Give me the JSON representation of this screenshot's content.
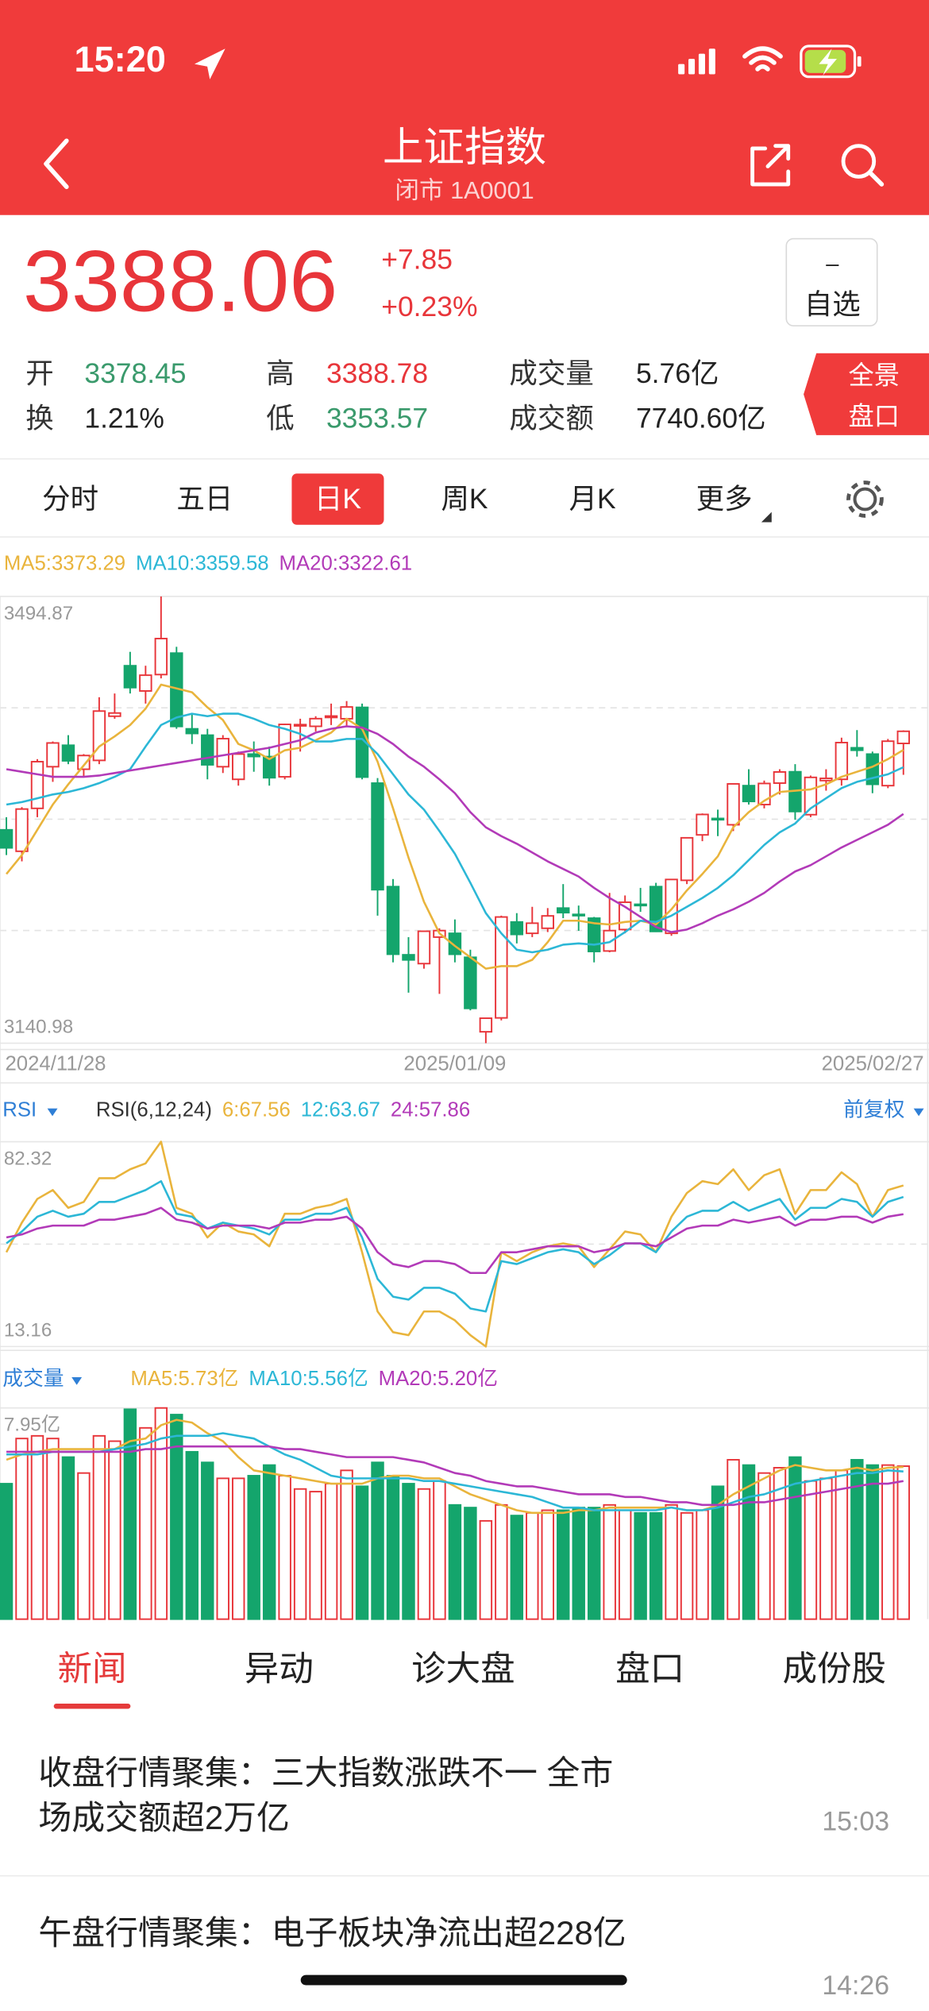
{
  "status_bar": {
    "time": "15:20"
  },
  "header": {
    "title": "上证指数",
    "subtitle": "闭市 1A0001"
  },
  "quote": {
    "price": "3388.06",
    "change": "+7.85",
    "change_pct": "+0.23%"
  },
  "watchlist_button": {
    "icon": "–",
    "label": "自选"
  },
  "stats": [
    {
      "label": "开",
      "value": "3378.45",
      "color": "#3a9a6c"
    },
    {
      "label": "高",
      "value": "3388.78",
      "color": "#e8353a"
    },
    {
      "label": "成交量",
      "value": "5.76亿",
      "color": "#222222"
    },
    {
      "label": "换",
      "value": "1.21%",
      "color": "#222222"
    },
    {
      "label": "低",
      "value": "3353.57",
      "color": "#3a9a6c"
    },
    {
      "label": "成交额",
      "value": "7740.60亿",
      "color": "#222222"
    }
  ],
  "panorama_button": [
    "全景",
    "盘口"
  ],
  "period_tabs": [
    "分时",
    "五日",
    "日K",
    "周K",
    "月K",
    "更多"
  ],
  "selected_period": "日K",
  "chart_data": [
    {
      "type": "candlestick",
      "categories": [
        "2024/11/28",
        null,
        null,
        null,
        null,
        null,
        null,
        null,
        null,
        null,
        null,
        null,
        null,
        null,
        null,
        null,
        null,
        null,
        null,
        null,
        null,
        null,
        null,
        null,
        null,
        null,
        null,
        null,
        null,
        "2025/01/09",
        null,
        null,
        null,
        null,
        null,
        null,
        null,
        null,
        null,
        null,
        null,
        null,
        null,
        null,
        null,
        null,
        null,
        null,
        null,
        null,
        null,
        null,
        null,
        null,
        null,
        null,
        null,
        null,
        "2025/02/27"
      ],
      "open": [
        3310,
        3293,
        3327,
        3360,
        3377,
        3358,
        3365,
        3400,
        3440,
        3420,
        3433,
        3450,
        3390,
        3385,
        3360,
        3350,
        3370,
        3368,
        3352,
        3393,
        3392,
        3399,
        3398,
        3407,
        3347,
        3265,
        3211,
        3204,
        3225,
        3228,
        3209,
        3150,
        3161,
        3237,
        3228,
        3232,
        3248,
        3243,
        3240,
        3214,
        3231,
        3251,
        3265,
        3228,
        3270,
        3306,
        3319,
        3314,
        3345,
        3330,
        3347,
        3356,
        3322,
        3349,
        3350,
        3375,
        3370,
        3345,
        3378.45
      ],
      "high": [
        3320,
        3328,
        3366,
        3380,
        3385,
        3370,
        3415,
        3418,
        3451,
        3440,
        3494.87,
        3455,
        3402,
        3390,
        3385,
        3372,
        3380,
        3376,
        3394,
        3398,
        3400,
        3410,
        3412,
        3410,
        3351,
        3271,
        3225,
        3230,
        3232,
        3239,
        3215,
        3161,
        3242,
        3244,
        3249,
        3248,
        3267,
        3250,
        3241,
        3260,
        3258,
        3264,
        3268,
        3271,
        3304,
        3323,
        3326,
        3347,
        3358,
        3349,
        3358,
        3362,
        3353,
        3358,
        3383,
        3389,
        3372,
        3382,
        3388.78
      ],
      "low": [
        3290,
        3285,
        3320,
        3348,
        3362,
        3352,
        3362,
        3398,
        3418,
        3410,
        3430,
        3390,
        3378,
        3350,
        3355,
        3345,
        3356,
        3345,
        3350,
        3372,
        3388,
        3393,
        3392,
        3350,
        3242,
        3205,
        3181,
        3200,
        3180,
        3205,
        3167,
        3140.98,
        3159,
        3220,
        3225,
        3229,
        3240,
        3230,
        3205,
        3213,
        3228,
        3245,
        3229,
        3226,
        3267,
        3301,
        3305,
        3309,
        3330,
        3327,
        3338,
        3318,
        3320,
        3341,
        3345,
        3368,
        3339,
        3343,
        3353.57
      ],
      "close": [
        3295.7,
        3326.46,
        3363.98,
        3378.81,
        3364.65,
        3368.86,
        3404.08,
        3402.53,
        3422.66,
        3432.49,
        3461.5,
        3391.88,
        3386.33,
        3361.49,
        3382.21,
        3370.03,
        3368.07,
        3351.26,
        3393.53,
        3393.35,
        3398.08,
        3400.14,
        3407.33,
        3351.76,
        3262.56,
        3211.43,
        3206.92,
        3229.64,
        3230.17,
        3211.39,
        3168.52,
        3160.76,
        3240.94,
        3227.12,
        3236.03,
        3241.82,
        3244.38,
        3242.62,
        3213.62,
        3230.16,
        3252.63,
        3250.6,
        3229.49,
        3270.66,
        3303.67,
        3322.17,
        3318.06,
        3346.39,
        3332.48,
        3346.72,
        3355.83,
        3324.49,
        3351.54,
        3350.78,
        3379.11,
        3373.03,
        3346.04,
        3380.21,
        3388.06
      ],
      "up_color": "#e8353a",
      "down_color": "#14a56c",
      "ylim": [
        3140.98,
        3494.87
      ],
      "yticks": [
        3140.98,
        3494.87
      ],
      "series": [
        {
          "name": "MA5:3373.29",
          "color": "#e9b43c",
          "values": [
            3275,
            3290,
            3310,
            3330,
            3346,
            3361,
            3376,
            3384,
            3393,
            3406,
            3425,
            3422,
            3419,
            3407,
            3397,
            3378,
            3373,
            3366,
            3373,
            3375,
            3381,
            3387,
            3398,
            3390,
            3364,
            3327,
            3288,
            3253,
            3228,
            3218,
            3209,
            3200,
            3202,
            3202,
            3207,
            3221,
            3238,
            3238,
            3236,
            3235,
            3237,
            3238,
            3235,
            3247,
            3262,
            3275,
            3289,
            3312,
            3324,
            3333,
            3340,
            3341,
            3342,
            3346,
            3352,
            3356,
            3360,
            3366,
            3373.29
          ]
        },
        {
          "name": "MA10:3359.58",
          "color": "#2cb7d6",
          "values": [
            3330,
            3332,
            3335,
            3338,
            3340,
            3343,
            3347,
            3352,
            3358,
            3376,
            3393,
            3399,
            3402,
            3400,
            3402,
            3402,
            3398,
            3393,
            3390,
            3386,
            3380,
            3380,
            3382,
            3382,
            3370,
            3354,
            3338,
            3326,
            3309,
            3291,
            3268,
            3244,
            3228,
            3215,
            3213,
            3215,
            3219,
            3220,
            3219,
            3221,
            3229,
            3238,
            3237,
            3242,
            3249,
            3256,
            3264,
            3274,
            3286,
            3298,
            3308,
            3315,
            3327,
            3335,
            3343,
            3348,
            3351,
            3354,
            3359.58
          ]
        },
        {
          "name": "MA20:3322.61",
          "color": "#b23ab8",
          "values": [
            3358,
            3356,
            3354,
            3352,
            3352,
            3352,
            3353,
            3355,
            3357,
            3359,
            3361,
            3363,
            3365,
            3367,
            3369,
            3371,
            3373,
            3375,
            3378,
            3381,
            3387,
            3390,
            3392,
            3391,
            3386,
            3378,
            3368,
            3360,
            3350,
            3339,
            3324,
            3312,
            3305,
            3299,
            3292,
            3285,
            3279,
            3273,
            3264,
            3256,
            3249,
            3241,
            3233,
            3229,
            3231,
            3236,
            3242,
            3247,
            3253,
            3260,
            3269,
            3277,
            3282,
            3289,
            3296,
            3302,
            3308,
            3314,
            3322.61
          ]
        }
      ]
    },
    {
      "type": "line",
      "title": "RSI",
      "params": "RSI(6,12,24)",
      "adjust_label": "前复权",
      "ylim": [
        13.16,
        82.32
      ],
      "yticks": [
        13.16,
        82.32
      ],
      "series": [
        {
          "name": "6:67.56",
          "color": "#e9b43c",
          "values": [
            45,
            55,
            63,
            66,
            60,
            62,
            70,
            70,
            73,
            75,
            82.32,
            60,
            58,
            50,
            55,
            52,
            51,
            47,
            58,
            58,
            60,
            61,
            63,
            45,
            25,
            18,
            17,
            25,
            25,
            22,
            17,
            13.16,
            45,
            42,
            45,
            47,
            48,
            47,
            40,
            46,
            52,
            51,
            45,
            57,
            65,
            69,
            68,
            73,
            66,
            71,
            73,
            58,
            66,
            66,
            72,
            68,
            57,
            66,
            67.56
          ]
        },
        {
          "name": "12:63.67",
          "color": "#2cb7d6",
          "values": [
            48,
            52,
            57,
            59,
            57,
            58,
            62,
            62,
            64,
            66,
            69,
            58,
            57,
            53,
            55,
            54,
            53,
            51,
            56,
            56,
            58,
            58,
            60,
            50,
            36,
            30,
            29,
            33,
            33,
            31,
            26,
            25,
            42,
            41,
            43,
            45,
            46,
            45,
            41,
            44,
            48,
            48,
            45,
            52,
            57,
            59,
            59,
            62,
            59,
            61,
            63,
            56,
            60,
            60,
            63,
            62,
            57,
            62,
            63.67
          ]
        },
        {
          "name": "24:57.86",
          "color": "#b23ab8",
          "values": [
            50,
            51,
            53,
            54,
            54,
            54,
            56,
            56,
            57,
            58,
            60,
            56,
            55,
            53,
            54,
            54,
            54,
            53,
            55,
            55,
            56,
            56,
            57,
            53,
            45,
            41,
            40,
            42,
            42,
            41,
            38,
            38,
            45,
            45,
            46,
            47,
            47,
            47,
            45,
            46,
            48,
            48,
            47,
            50,
            53,
            54,
            54,
            56,
            55,
            56,
            57,
            54,
            56,
            56,
            57,
            57,
            55,
            57,
            57.86
          ]
        }
      ]
    },
    {
      "type": "bar",
      "title": "成交量",
      "values": [
        5.1,
        6.8,
        6.9,
        6.8,
        6.1,
        5.5,
        6.9,
        6.7,
        7.9,
        7.2,
        7.95,
        7.7,
        6.3,
        5.9,
        5.3,
        5.3,
        5.4,
        5.8,
        5.4,
        4.9,
        4.8,
        5.1,
        5.6,
        5.0,
        5.9,
        5.4,
        5.1,
        4.9,
        5.2,
        4.3,
        4.2,
        3.7,
        4.3,
        3.9,
        4.0,
        4.1,
        4.1,
        4.2,
        4.2,
        4.3,
        4.1,
        4.0,
        4.0,
        4.3,
        4.0,
        4.1,
        5.0,
        6.0,
        5.8,
        5.5,
        5.7,
        6.1,
        5.2,
        5.3,
        5.6,
        6.0,
        5.8,
        5.8,
        5.76
      ],
      "up_color": "#e8353a",
      "down_color": "#14a56c",
      "ylim": [
        0,
        7.95
      ],
      "yticks": [
        {
          "value": 7.95,
          "label": "7.95亿"
        }
      ],
      "series": [
        {
          "name": "MA5:5.73亿",
          "color": "#e9b43c",
          "values": [
            6.0,
            6.2,
            6.3,
            6.4,
            6.4,
            6.4,
            6.4,
            6.4,
            6.7,
            6.8,
            7.3,
            7.5,
            7.4,
            7.0,
            6.7,
            6.1,
            5.6,
            5.5,
            5.4,
            5.3,
            5.2,
            5.1,
            5.1,
            5.1,
            5.3,
            5.4,
            5.4,
            5.3,
            5.3,
            5.0,
            4.7,
            4.5,
            4.3,
            4.1,
            4.0,
            4.0,
            4.0,
            4.1,
            4.1,
            4.2,
            4.2,
            4.2,
            4.2,
            4.2,
            4.1,
            4.1,
            4.3,
            4.7,
            5.0,
            5.3,
            5.6,
            5.8,
            5.7,
            5.6,
            5.6,
            5.7,
            5.6,
            5.7,
            5.73
          ]
        },
        {
          "name": "MA10:5.56亿",
          "color": "#2cb7d6",
          "values": [
            6.2,
            6.2,
            6.2,
            6.3,
            6.3,
            6.3,
            6.3,
            6.4,
            6.5,
            6.6,
            6.8,
            6.9,
            6.9,
            6.9,
            7.0,
            6.9,
            6.8,
            6.5,
            6.2,
            6.0,
            5.7,
            5.4,
            5.3,
            5.3,
            5.3,
            5.3,
            5.3,
            5.2,
            5.2,
            5.1,
            5.0,
            4.9,
            4.8,
            4.7,
            4.6,
            4.4,
            4.2,
            4.2,
            4.1,
            4.1,
            4.1,
            4.1,
            4.1,
            4.2,
            4.1,
            4.1,
            4.2,
            4.4,
            4.6,
            4.7,
            4.9,
            5.1,
            5.2,
            5.3,
            5.4,
            5.5,
            5.5,
            5.6,
            5.56
          ]
        },
        {
          "name": "MA20:5.20亿",
          "color": "#b23ab8",
          "values": [
            6.3,
            6.3,
            6.3,
            6.3,
            6.3,
            6.3,
            6.3,
            6.3,
            6.3,
            6.4,
            6.4,
            6.5,
            6.5,
            6.5,
            6.5,
            6.5,
            6.5,
            6.5,
            6.4,
            6.4,
            6.3,
            6.2,
            6.1,
            6.1,
            6.1,
            6.1,
            6.0,
            5.9,
            5.7,
            5.5,
            5.4,
            5.2,
            5.1,
            5.0,
            5.0,
            4.9,
            4.8,
            4.7,
            4.7,
            4.7,
            4.6,
            4.6,
            4.5,
            4.4,
            4.4,
            4.3,
            4.3,
            4.3,
            4.4,
            4.4,
            4.5,
            4.6,
            4.7,
            4.8,
            4.9,
            5.0,
            5.1,
            5.1,
            5.2
          ]
        }
      ]
    }
  ],
  "news_tabs": [
    "新闻",
    "异动",
    "诊大盘",
    "盘口",
    "成份股"
  ],
  "selected_news_tab": "新闻",
  "news": [
    {
      "title_lines": [
        "收盘行情聚集：三大指数涨跌不一 全市",
        "场成交额超2万亿"
      ],
      "time": "15:03"
    },
    {
      "title_lines": [
        "午盘行情聚集：电子板块净流出超228亿"
      ],
      "time": "14:26"
    }
  ]
}
